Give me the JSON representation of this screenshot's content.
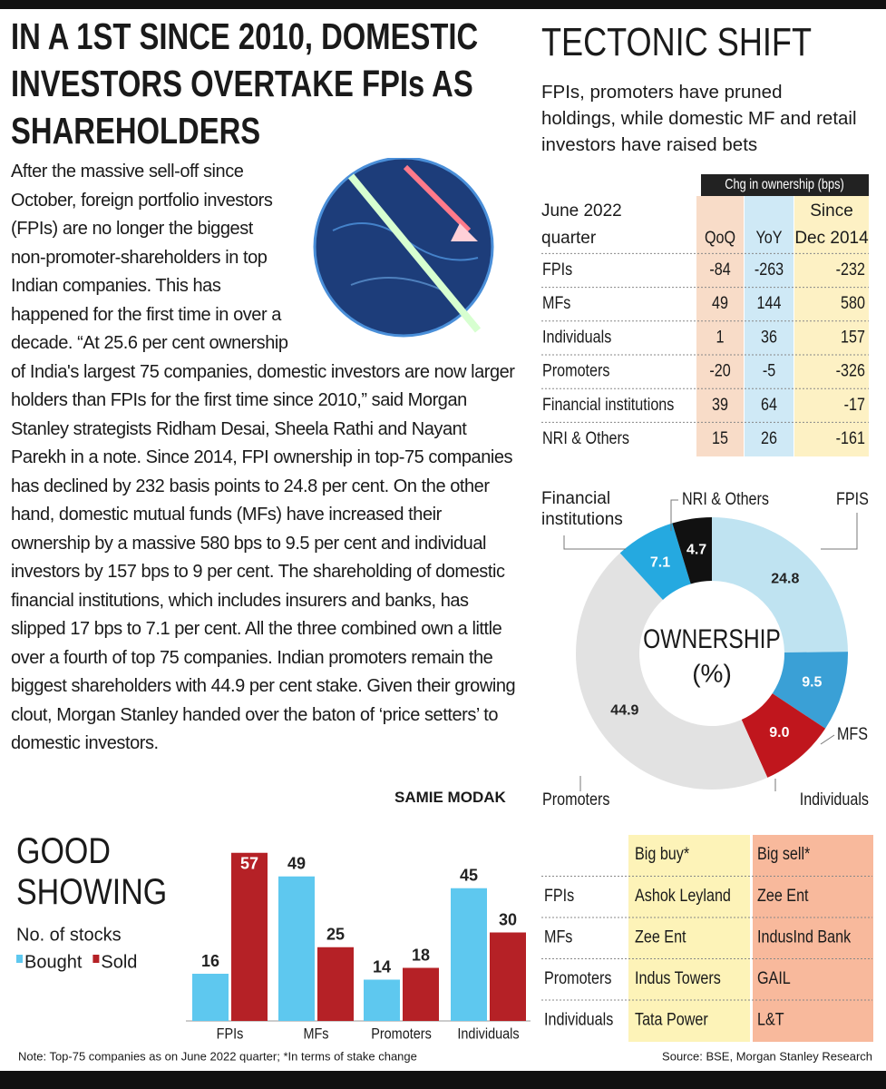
{
  "headline": "IN A 1ST SINCE 2010, DOMESTIC INVESTORS OVERTAKE FPIs AS SHAREHOLDERS",
  "article": {
    "body": "After the massive sell-off since October, foreign portfolio investors (FPIs) are no longer the biggest non-promoter-shareholders in top Indian companies. This has happened for the first time in over a decade. “At 25.6 per cent ownership of India's largest 75 companies, domestic investors are now larger holders than FPIs for the first time since 2010,” said Morgan Stanley strategists Ridham Desai, Sheela Rathi and Nayant Parekh in a note. Since 2014, FPI ownership in top-75 companies has declined by 232 basis points to 24.8 per cent. On the other hand, domestic mutual funds (MFs) have increased their ownership by a massive 580 bps to 9.5 per cent and individual investors by 157 bps to 9 per cent. The shareholding of domestic financial institutions, which includes insurers and banks, has slipped 17 bps to 7.1 per cent. All the three combined own a little over a fourth of top 75 companies. Indian promoters remain the biggest shareholders with 44.9 per cent stake. Given their growing clout, Morgan Stanley handed over the baton of ‘price setters’ to domestic investors.",
    "byline": "SAMIE MODAK"
  },
  "tectonic_shift": {
    "title": "TECTONIC SHIFT",
    "subtitle": "FPIs, promoters have pruned holdings, while domestic MF and retail investors have raised bets",
    "table": {
      "group_header": "Chg in ownership (bps)",
      "row_header": "June 2022 quarter",
      "columns": [
        "QoQ",
        "YoY",
        "Since Dec 2014"
      ],
      "rows": [
        [
          "FPIs",
          -84,
          -263,
          -232
        ],
        [
          "MFs",
          49,
          144,
          580
        ],
        [
          "Individuals",
          1,
          36,
          157
        ],
        [
          "Promoters",
          -20,
          -5,
          -326
        ],
        [
          "Financial institutions",
          39,
          64,
          -17
        ],
        [
          "NRI & Others",
          15,
          26,
          -161
        ]
      ]
    }
  },
  "chart_data": [
    {
      "type": "pie",
      "title": "OWNERSHIP",
      "unit": "(%)",
      "categories": [
        "FPIS",
        "MFS",
        "Individuals",
        "Promoters",
        "Financial institutions",
        "NRI & Others"
      ],
      "values": [
        24.8,
        9.5,
        9.0,
        44.9,
        7.1,
        4.7
      ],
      "value_labels": [
        "24.8",
        "9.5",
        "9.0",
        "44.9",
        "7.1",
        "4.7"
      ],
      "colors": [
        "#bfe3f1",
        "#3aa0d6",
        "#c0161d",
        "#e2e2e2",
        "#25a9e0",
        "#111111"
      ]
    },
    {
      "type": "bar",
      "title": "GOOD SHOWING",
      "subtitle": "No. of stocks",
      "categories": [
        "FPIs",
        "MFs",
        "Promoters",
        "Individuals"
      ],
      "series": [
        {
          "name": "Bought",
          "color": "#5ec8ef",
          "values": [
            16,
            49,
            14,
            45
          ]
        },
        {
          "name": "Sold",
          "color": "#b52126",
          "values": [
            57,
            25,
            18,
            30
          ]
        }
      ]
    }
  ],
  "big_moves": {
    "columns": [
      "Big buy*",
      "Big sell*"
    ],
    "rows": [
      [
        "FPIs",
        "Ashok Leyland",
        "Zee Ent"
      ],
      [
        "MFs",
        "Zee Ent",
        "IndusInd Bank"
      ],
      [
        "Promoters",
        "Indus Towers",
        "GAIL"
      ],
      [
        "Individuals",
        "Tata Power",
        "L&T"
      ]
    ]
  },
  "note": "Note: Top-75 companies as on June 2022 quarter; *In terms of stake change",
  "source": "Source: BSE, Morgan Stanley Research"
}
